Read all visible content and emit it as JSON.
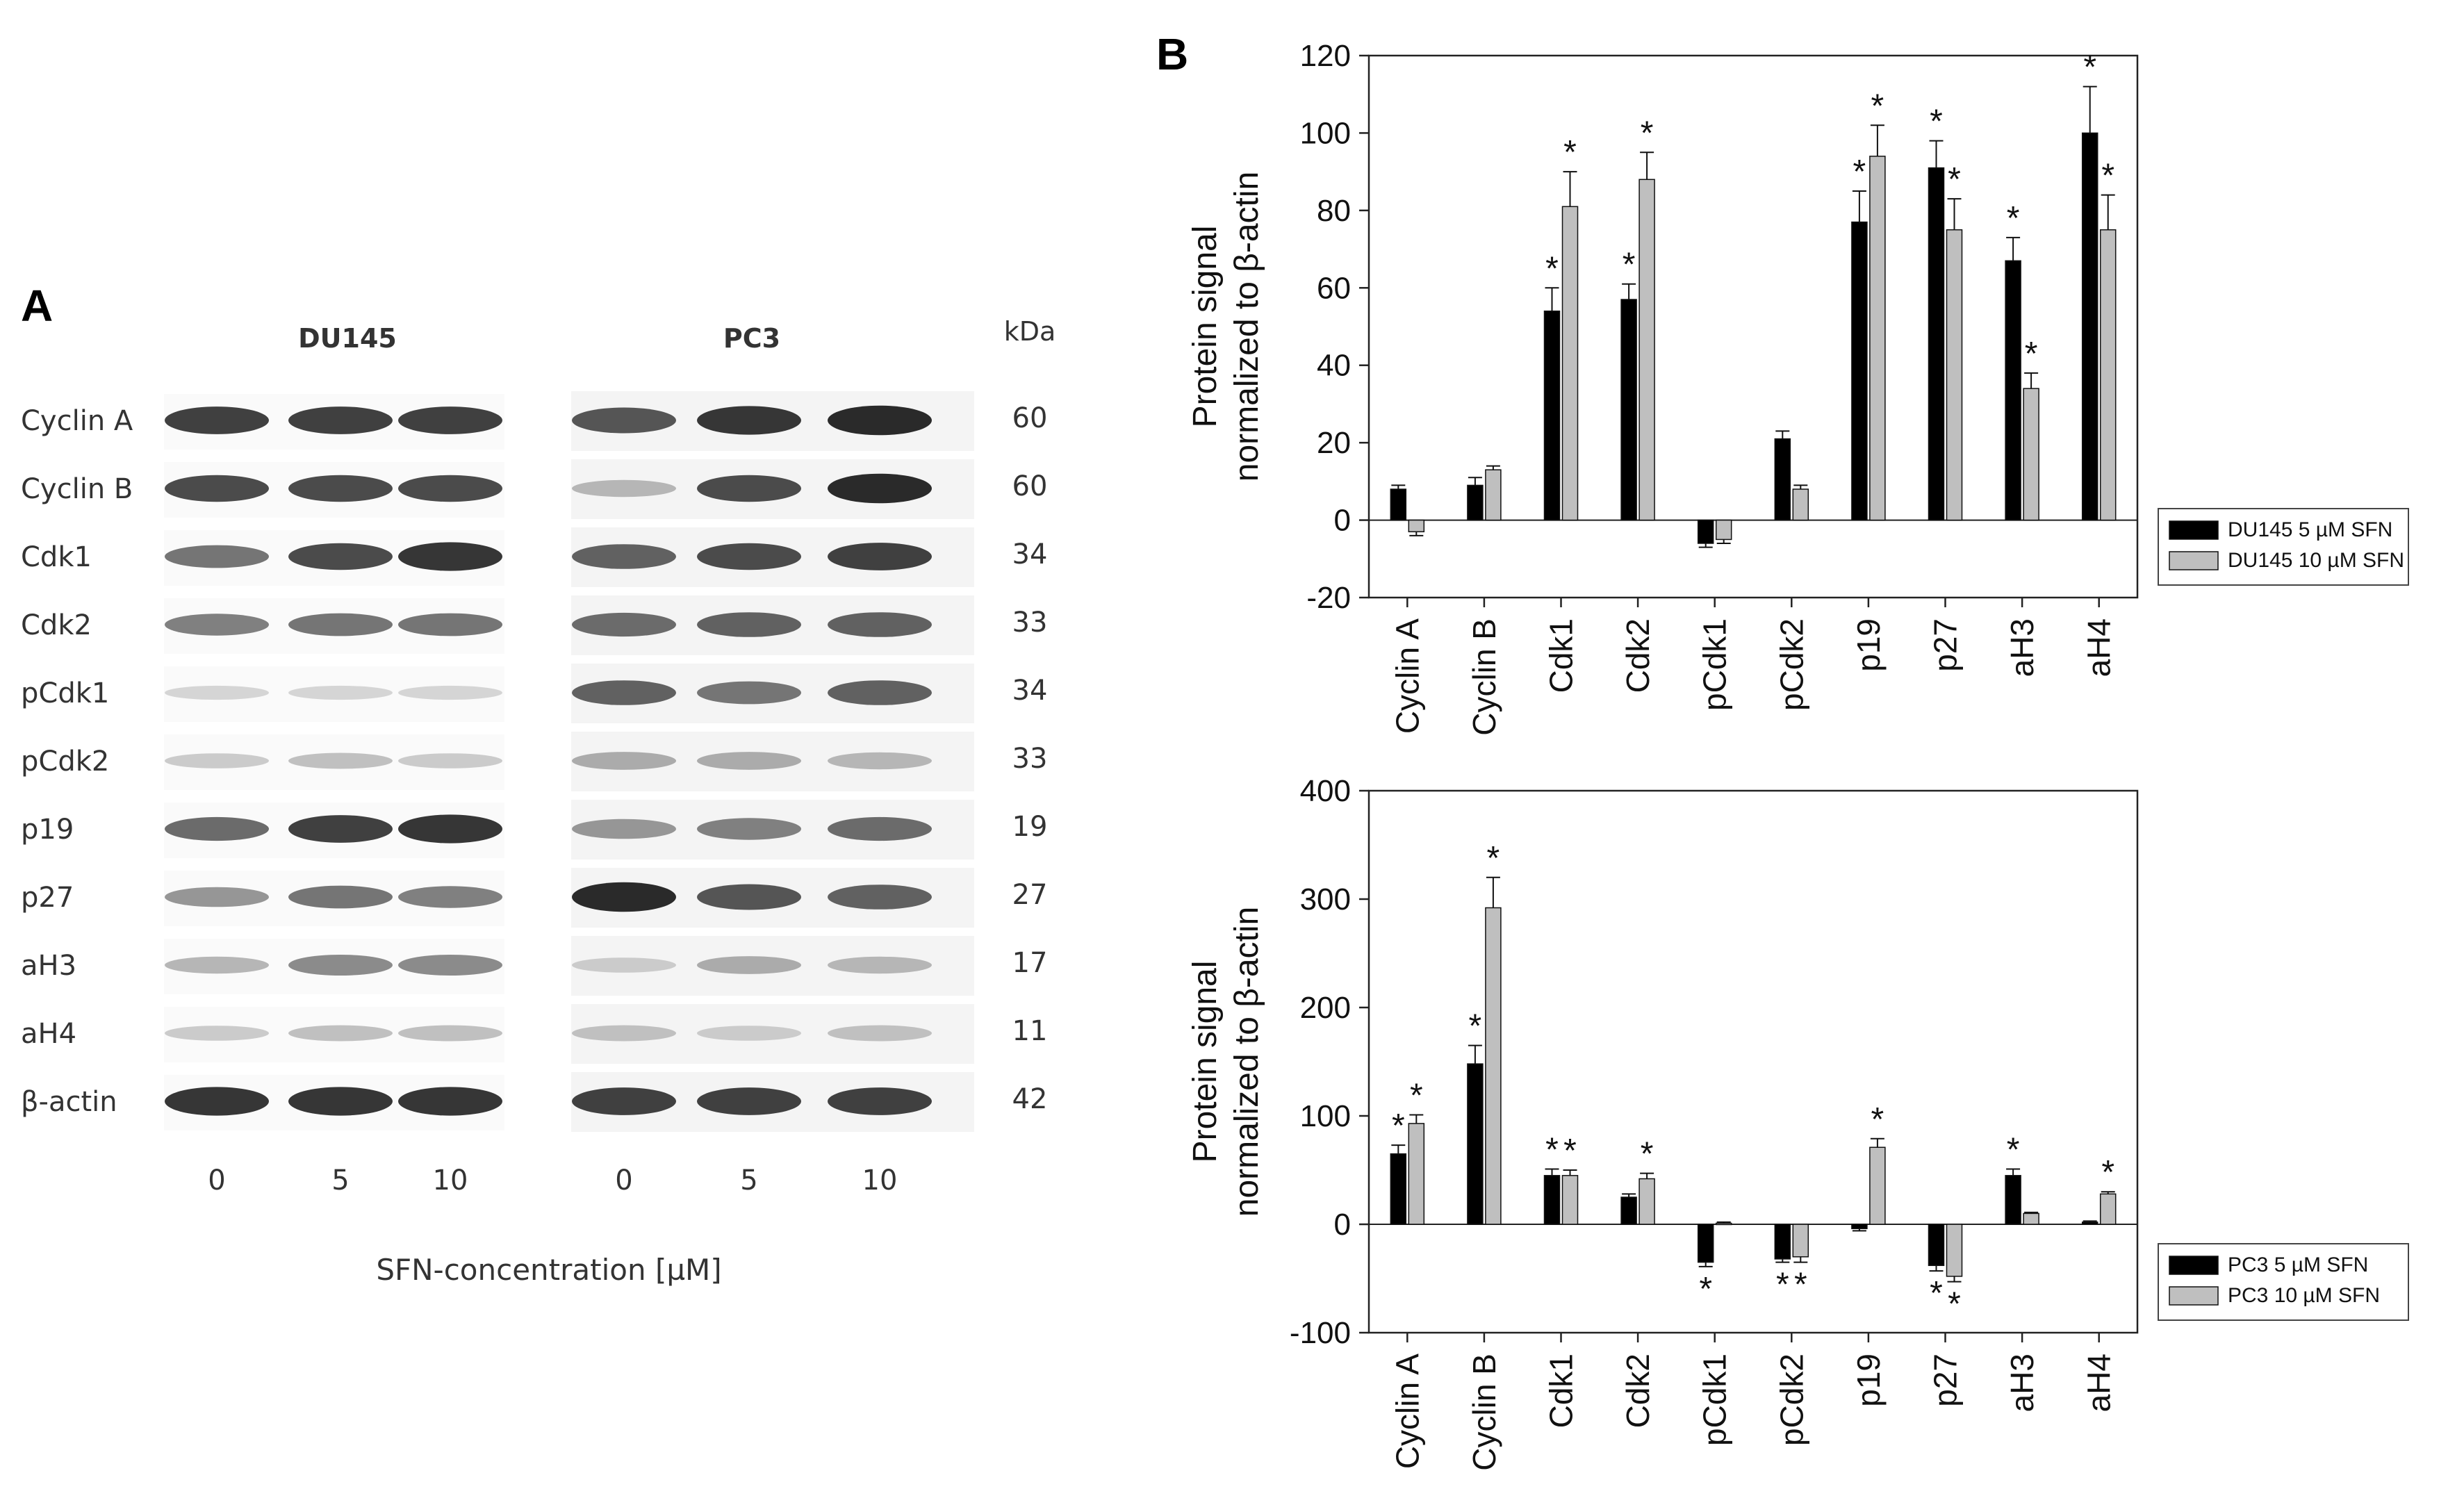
{
  "panel_a": {
    "letter": "A",
    "cell_lines": [
      "DU145",
      "PC3"
    ],
    "kda_header": "kDa",
    "proteins": [
      {
        "label": "Cyclin A",
        "kda": "60"
      },
      {
        "label": "Cyclin B",
        "kda": "60"
      },
      {
        "label": "Cdk1",
        "kda": "34"
      },
      {
        "label": "Cdk2",
        "kda": "33"
      },
      {
        "label": "pCdk1",
        "kda": "34"
      },
      {
        "label": "pCdk2",
        "kda": "33"
      },
      {
        "label": "p19",
        "kda": "19"
      },
      {
        "label": "p27",
        "kda": "27"
      },
      {
        "label": "aH3",
        "kda": "17"
      },
      {
        "label": "aH4",
        "kda": "11"
      },
      {
        "label": "β-actin",
        "kda": "42"
      }
    ],
    "lane_labels": [
      "0",
      "5",
      "10",
      "0",
      "5",
      "10"
    ],
    "x_axis_label": "SFN-concentration [µM]",
    "band_intensity": [
      [
        [
          0.85,
          0.85,
          0.85
        ],
        [
          0.75,
          0.9,
          0.95
        ]
      ],
      [
        [
          0.8,
          0.8,
          0.8
        ],
        [
          0.3,
          0.8,
          0.95
        ]
      ],
      [
        [
          0.6,
          0.8,
          0.9
        ],
        [
          0.7,
          0.8,
          0.85
        ]
      ],
      [
        [
          0.55,
          0.6,
          0.6
        ],
        [
          0.65,
          0.7,
          0.7
        ]
      ],
      [
        [
          0.15,
          0.15,
          0.15
        ],
        [
          0.7,
          0.6,
          0.7
        ]
      ],
      [
        [
          0.2,
          0.25,
          0.2
        ],
        [
          0.35,
          0.35,
          0.3
        ]
      ],
      [
        [
          0.65,
          0.85,
          0.9
        ],
        [
          0.45,
          0.55,
          0.65
        ]
      ],
      [
        [
          0.45,
          0.6,
          0.55
        ],
        [
          0.95,
          0.75,
          0.7
        ]
      ],
      [
        [
          0.3,
          0.5,
          0.5
        ],
        [
          0.2,
          0.35,
          0.3
        ]
      ],
      [
        [
          0.2,
          0.25,
          0.25
        ],
        [
          0.25,
          0.2,
          0.25
        ]
      ],
      [
        [
          0.9,
          0.9,
          0.9
        ],
        [
          0.85,
          0.85,
          0.85
        ]
      ]
    ]
  },
  "chart_data": [
    {
      "panel": "B",
      "type": "bar",
      "ylabel": "Protein signal normalized to β-actin",
      "ylim": [
        -20,
        120
      ],
      "yticks": [
        -20,
        0,
        20,
        40,
        60,
        80,
        100,
        120
      ],
      "categories": [
        "Cyclin A",
        "Cyclin B",
        "Cdk1",
        "Cdk2",
        "pCdk1",
        "pCdk2",
        "p19",
        "p27",
        "aH3",
        "aH4"
      ],
      "legend_position": "right",
      "series": [
        {
          "name": "DU145 5 µM SFN",
          "color": "#000000",
          "values": [
            8,
            9,
            54,
            57,
            -6,
            21,
            77,
            91,
            67,
            100
          ],
          "errors": [
            1,
            2,
            6,
            4,
            1,
            2,
            8,
            7,
            6,
            12
          ],
          "significant": [
            false,
            false,
            true,
            true,
            false,
            false,
            true,
            true,
            true,
            true
          ]
        },
        {
          "name": "DU145 10 µM SFN",
          "color": "#bfbfbf",
          "values": [
            -3,
            13,
            81,
            88,
            -5,
            8,
            94,
            75,
            34,
            75
          ],
          "errors": [
            1,
            1,
            9,
            7,
            1,
            1,
            8,
            8,
            4,
            9
          ],
          "significant": [
            false,
            false,
            true,
            true,
            false,
            false,
            true,
            true,
            true,
            true
          ]
        }
      ]
    },
    {
      "type": "bar",
      "ylabel": "Protein signal normalized to β-actin",
      "ylim": [
        -100,
        400
      ],
      "yticks": [
        -100,
        0,
        100,
        200,
        300,
        400
      ],
      "categories": [
        "Cyclin A",
        "Cyclin B",
        "Cdk1",
        "Cdk2",
        "pCdk1",
        "pCdk2",
        "p19",
        "p27",
        "aH3",
        "aH4"
      ],
      "legend_position": "right",
      "series": [
        {
          "name": "PC3 5 µM SFN",
          "color": "#000000",
          "values": [
            65,
            148,
            45,
            25,
            -35,
            -32,
            -4,
            -38,
            45,
            2
          ],
          "errors": [
            8,
            17,
            6,
            3,
            4,
            3,
            2,
            5,
            6,
            1
          ],
          "significant": [
            true,
            true,
            true,
            false,
            true,
            true,
            false,
            true,
            true,
            false
          ]
        },
        {
          "name": "PC3 10 µM SFN",
          "color": "#bfbfbf",
          "values": [
            93,
            292,
            45,
            42,
            1,
            -30,
            71,
            -48,
            10,
            28
          ],
          "errors": [
            8,
            28,
            5,
            5,
            1,
            5,
            8,
            5,
            1,
            2
          ],
          "significant": [
            true,
            true,
            true,
            true,
            false,
            true,
            true,
            true,
            false,
            true
          ]
        }
      ]
    }
  ]
}
